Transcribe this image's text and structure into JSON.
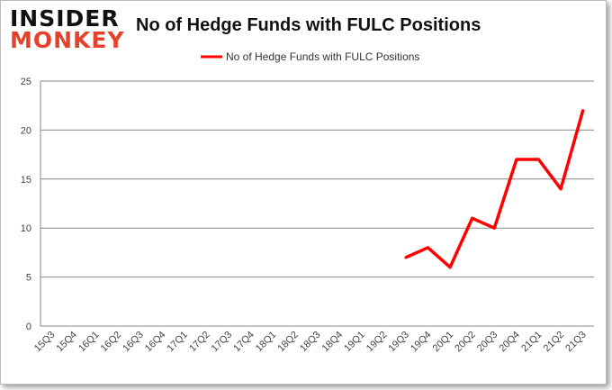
{
  "logo": {
    "line1": "INSIDER",
    "line2": "MONKEY"
  },
  "chart_data": {
    "type": "line",
    "title": "No of Hedge Funds with FULC Positions",
    "categories": [
      "15Q3",
      "15Q4",
      "16Q1",
      "16Q2",
      "16Q3",
      "16Q4",
      "17Q1",
      "17Q2",
      "17Q3",
      "17Q4",
      "18Q1",
      "18Q2",
      "18Q3",
      "18Q4",
      "19Q1",
      "19Q2",
      "19Q3",
      "19Q4",
      "20Q1",
      "20Q2",
      "20Q3",
      "20Q4",
      "21Q1",
      "21Q2",
      "21Q3"
    ],
    "series": [
      {
        "name": "No of Hedge Funds with FULC Positions",
        "color": "#ff0000",
        "values": [
          null,
          null,
          null,
          null,
          null,
          null,
          null,
          null,
          null,
          null,
          null,
          null,
          null,
          null,
          null,
          null,
          7,
          8,
          6,
          11,
          10,
          17,
          17,
          14,
          22
        ]
      }
    ],
    "ylim": [
      0,
      25
    ],
    "yticks": [
      0,
      5,
      10,
      15,
      20,
      25
    ],
    "grid": true,
    "legend": "top-center"
  }
}
